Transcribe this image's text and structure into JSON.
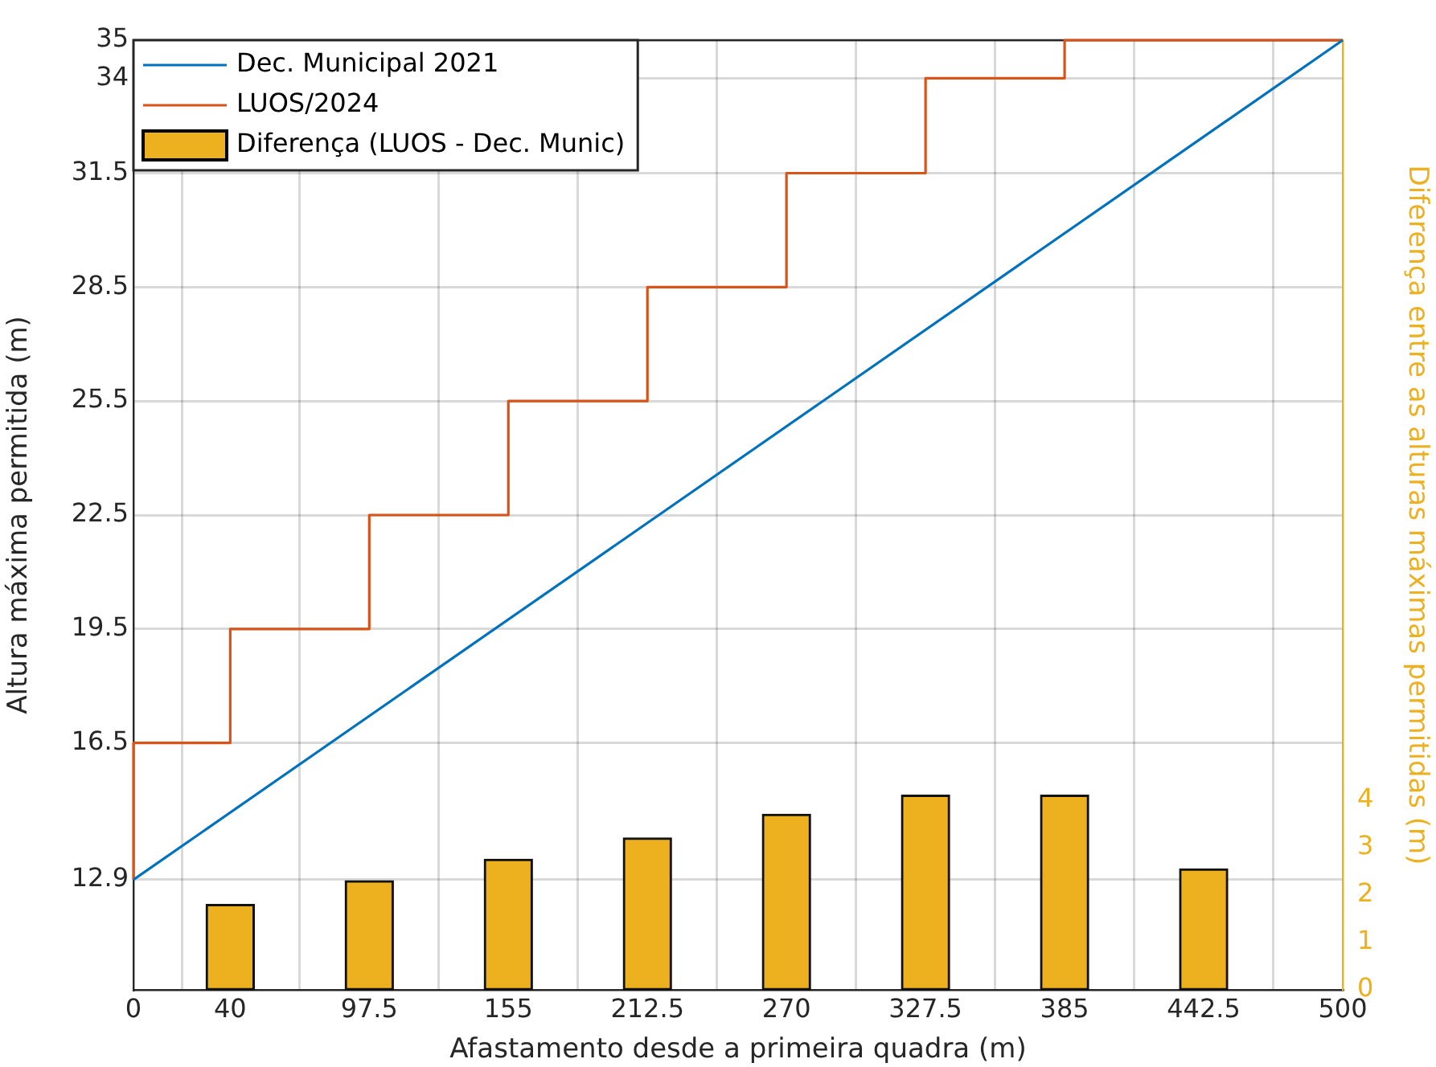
{
  "chart_data": {
    "type": "line",
    "xlabel": "Afastamento desde a primeira quadra (m)",
    "ylabel": "Altura máxima permitida (m)",
    "y2label": "Diferença entre as alturas máximas permitidas (m)",
    "xlim": [
      0,
      500
    ],
    "xticks": [
      0,
      40,
      97.5,
      155,
      212.5,
      270,
      327.5,
      385,
      442.5,
      500
    ],
    "ylim": [
      10,
      35
    ],
    "yticks": [
      12.9,
      16.5,
      19.5,
      22.5,
      25.5,
      28.5,
      31.5,
      34,
      35
    ],
    "y2lim": [
      0,
      20
    ],
    "y2ticks": [
      0,
      1,
      2,
      3,
      4
    ],
    "grid": true,
    "legend": "top left",
    "marker": "none",
    "series": [
      {
        "name": "Dec. Municipal 2021",
        "color": "#0072bd",
        "x": [
          0,
          500
        ],
        "values": [
          12.9,
          35
        ]
      },
      {
        "name": "LUOS/2024",
        "type": "step",
        "color": "#d95319",
        "x": [
          0,
          40,
          97.5,
          155,
          212.5,
          270,
          327.5,
          385,
          442.5,
          500
        ],
        "values": [
          12.9,
          16.5,
          19.5,
          22.5,
          25.5,
          28.5,
          31.5,
          34,
          35,
          35
        ]
      },
      {
        "name": "Diferença (LUOS - Dec. Munic)",
        "type": "bar",
        "axis": "y2",
        "color": "#edb120",
        "x": [
          40,
          97.5,
          155,
          212.5,
          270,
          327.5,
          385,
          442.5
        ],
        "values": [
          1.8,
          2.3,
          2.75,
          3.2,
          3.7,
          4.1,
          4.1,
          2.55
        ]
      }
    ]
  }
}
